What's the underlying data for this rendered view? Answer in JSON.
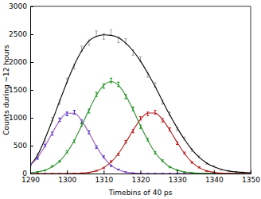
{
  "chart_data": {
    "type": "scatter",
    "xlabel": "Timebins of 40 ps",
    "ylabel": "Counts during ~12 hours",
    "xlim": [
      1290,
      1350
    ],
    "xticks": [
      1290,
      1300,
      1310,
      1320,
      1330,
      1340,
      1350
    ],
    "ylim": [
      0,
      3000
    ],
    "yticks": [
      0,
      500,
      1000,
      1500,
      2000,
      2500,
      3000
    ],
    "grid": false,
    "x": [
      1290,
      1292,
      1294,
      1296,
      1298,
      1300,
      1302,
      1304,
      1306,
      1308,
      1310,
      1312,
      1314,
      1316,
      1318,
      1320,
      1322,
      1324,
      1326,
      1328,
      1330,
      1332,
      1334,
      1336,
      1338,
      1340,
      1342,
      1344,
      1346,
      1348,
      1350
    ],
    "series": [
      {
        "type": "scatter",
        "marker": "errorbar",
        "color": "#a0a0a0",
        "values": [
          140,
          345,
          600,
          975,
          1280,
          1670,
          1920,
          2240,
          2350,
          2510,
          2460,
          2530,
          2400,
          2370,
          2170,
          2050,
          1770,
          1590,
          1280,
          1070,
          800,
          630,
          420,
          300,
          180,
          130,
          70,
          50,
          25,
          22,
          12
        ],
        "errors": [
          12,
          19,
          25,
          31,
          36,
          41,
          44,
          47,
          48,
          50,
          50,
          50,
          49,
          49,
          47,
          45,
          42,
          40,
          36,
          32,
          29,
          25,
          21,
          17,
          14,
          11,
          9,
          7,
          6,
          5,
          4
        ]
      },
      {
        "type": "scatter",
        "marker": "errorbar",
        "color": "#1a1acc",
        "values": [
          160,
          275,
          505,
          715,
          965,
          1070,
          1100,
          930,
          740,
          475,
          300,
          140,
          72,
          25,
          10,
          4,
          1,
          0,
          0,
          0,
          0,
          0,
          0,
          0,
          0,
          0,
          0,
          0,
          0,
          0,
          0
        ],
        "errors": [
          13,
          17,
          22,
          27,
          31,
          33,
          33,
          31,
          27,
          22,
          17,
          12,
          8,
          5,
          3,
          2,
          1,
          1,
          1,
          1,
          1,
          1,
          1,
          1,
          1,
          1,
          1,
          1,
          1,
          1,
          1
        ]
      },
      {
        "type": "scatter",
        "marker": "errorbar",
        "color": "#109910",
        "values": [
          10,
          30,
          55,
          130,
          215,
          390,
          580,
          875,
          1120,
          1420,
          1570,
          1670,
          1600,
          1380,
          1160,
          840,
          610,
          370,
          230,
          115,
          62,
          25,
          14,
          4,
          2,
          0,
          0,
          0,
          0,
          0,
          0
        ],
        "errors": [
          3,
          5,
          8,
          11,
          15,
          20,
          24,
          29,
          34,
          38,
          40,
          41,
          40,
          38,
          34,
          29,
          24,
          20,
          15,
          11,
          8,
          5,
          3,
          2,
          1,
          1,
          1,
          1,
          1,
          1,
          1
        ]
      },
      {
        "type": "scatter",
        "marker": "errorbar",
        "color": "#cc1111",
        "values": [
          0,
          0,
          0,
          0,
          0,
          1,
          3,
          8,
          18,
          50,
          100,
          215,
          345,
          570,
          760,
          990,
          1070,
          1100,
          955,
          790,
          545,
          365,
          200,
          110,
          45,
          22,
          6,
          2,
          1,
          0,
          0
        ],
        "errors": [
          1,
          1,
          1,
          1,
          1,
          1,
          2,
          3,
          4,
          7,
          10,
          14,
          19,
          24,
          28,
          31,
          33,
          33,
          31,
          28,
          24,
          19,
          14,
          10,
          7,
          4,
          3,
          1,
          1,
          1,
          1
        ]
      },
      {
        "type": "line",
        "line_style": "solid",
        "color": "#000000",
        "values": [
          150,
          330,
          620,
          950,
          1300,
          1640,
          1950,
          2200,
          2380,
          2460,
          2490,
          2480,
          2440,
          2340,
          2200,
          2020,
          1800,
          1560,
          1300,
          1050,
          820,
          610,
          430,
          290,
          190,
          120,
          75,
          45,
          30,
          20,
          15
        ]
      },
      {
        "type": "line",
        "line_style": "solid",
        "color": "#9955bb",
        "values": [
          149,
          288,
          489,
          728,
          948,
          1082,
          1082,
          948,
          728,
          489,
          288,
          149,
          67,
          27,
          9,
          3,
          0,
          0,
          0,
          0,
          0,
          0,
          0,
          0,
          0,
          0,
          0,
          0,
          0,
          0,
          0
        ]
      },
      {
        "type": "line",
        "line_style": "solid",
        "color": "#2e8b2e",
        "values": [
          12,
          28,
          60,
          121,
          223,
          379,
          594,
          859,
          1143,
          1401,
          1584,
          1650,
          1584,
          1401,
          1143,
          859,
          594,
          379,
          223,
          121,
          60,
          28,
          12,
          5,
          2,
          0,
          0,
          0,
          0,
          0,
          0
        ]
      },
      {
        "type": "line",
        "line_style": "solid",
        "color": "#aa2222",
        "values": [
          0,
          0,
          0,
          0,
          0,
          0,
          2,
          7,
          20,
          48,
          105,
          205,
          357,
          557,
          778,
          971,
          1085,
          1085,
          971,
          778,
          557,
          357,
          205,
          105,
          48,
          20,
          7,
          2,
          0,
          0,
          0
        ]
      }
    ]
  }
}
